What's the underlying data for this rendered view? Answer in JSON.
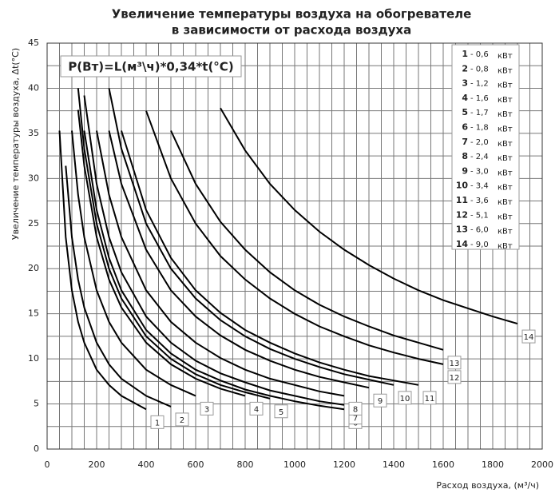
{
  "chart_data": {
    "type": "line",
    "title": [
      "Увеличение температуры воздуха на обогревателе",
      "в зависимости от расхода воздуха"
    ],
    "annotation": "P(Вт)=L(м³\\ч)*0,34*t(°C)",
    "x_label": "Расход воздуха, (м³/ч)",
    "y_label": "Увеличение температуры воздуха, Δt(°C)",
    "legend_unit": "кВт",
    "x": [
      50,
      75,
      100,
      125,
      150,
      200,
      250,
      300,
      400,
      500,
      600,
      700,
      800,
      900,
      1000,
      1100,
      1200,
      1300,
      1400,
      1500,
      1600,
      1700,
      1800,
      1900
    ],
    "series": [
      {
        "name": "1",
        "legend_label": "- 0,6",
        "color": "#000",
        "values": [
          35.3,
          23.5,
          17.6,
          14.1,
          11.8,
          8.8,
          7.1,
          5.9,
          4.4,
          null,
          null,
          null,
          null,
          null,
          null,
          null,
          null,
          null,
          null,
          null,
          null,
          null,
          null,
          null
        ]
      },
      {
        "name": "2",
        "legend_label": "- 0,8",
        "color": "#000",
        "values": [
          null,
          31.4,
          23.5,
          18.8,
          15.7,
          11.8,
          9.4,
          7.8,
          5.9,
          4.7,
          null,
          null,
          null,
          null,
          null,
          null,
          null,
          null,
          null,
          null,
          null,
          null,
          null,
          null
        ]
      },
      {
        "name": "3",
        "legend_label": "- 1,2",
        "color": "#000",
        "values": [
          null,
          null,
          35.3,
          28.2,
          23.5,
          17.6,
          14.1,
          11.8,
          8.8,
          7.1,
          5.9,
          null,
          null,
          null,
          null,
          null,
          null,
          null,
          null,
          null,
          null,
          null,
          null,
          null
        ]
      },
      {
        "name": "4",
        "legend_label": "- 1,6",
        "color": "#000",
        "values": [
          null,
          null,
          null,
          37.6,
          31.4,
          23.5,
          18.8,
          15.7,
          11.8,
          9.4,
          7.8,
          6.7,
          5.9,
          null,
          null,
          null,
          null,
          null,
          null,
          null,
          null,
          null,
          null,
          null
        ]
      },
      {
        "name": "5",
        "legend_label": "- 1,7",
        "color": "#000",
        "values": [
          null,
          null,
          null,
          40.0,
          33.3,
          25.0,
          20.0,
          16.7,
          12.5,
          10.0,
          8.3,
          7.1,
          6.3,
          5.6,
          null,
          null,
          null,
          null,
          null,
          null,
          null,
          null,
          null,
          null
        ]
      },
      {
        "name": "6",
        "legend_label": "- 1,8",
        "color": "#000",
        "values": [
          null,
          null,
          null,
          null,
          35.3,
          26.5,
          21.2,
          17.6,
          13.2,
          10.6,
          8.8,
          7.6,
          6.6,
          5.9,
          5.3,
          4.8,
          4.4,
          null,
          null,
          null,
          null,
          null,
          null,
          null
        ]
      },
      {
        "name": "7",
        "legend_label": "- 2,0",
        "color": "#000",
        "values": [
          null,
          null,
          null,
          null,
          39.2,
          29.4,
          23.5,
          19.6,
          14.7,
          11.8,
          9.8,
          8.4,
          7.4,
          6.5,
          5.9,
          5.3,
          4.9,
          null,
          null,
          null,
          null,
          null,
          null,
          null
        ]
      },
      {
        "name": "8",
        "legend_label": "- 2,4",
        "color": "#000",
        "values": [
          null,
          null,
          null,
          null,
          null,
          35.3,
          28.2,
          23.5,
          17.6,
          14.1,
          11.8,
          10.1,
          8.8,
          7.8,
          7.1,
          6.4,
          5.9,
          null,
          null,
          null,
          null,
          null,
          null,
          null
        ]
      },
      {
        "name": "9",
        "legend_label": "- 3,0",
        "color": "#000",
        "values": [
          null,
          null,
          null,
          null,
          null,
          null,
          35.3,
          29.4,
          22.1,
          17.6,
          14.7,
          12.6,
          11.0,
          9.8,
          8.8,
          8.0,
          7.4,
          6.8,
          null,
          null,
          null,
          null,
          null,
          null
        ]
      },
      {
        "name": "10",
        "legend_label": "- 3,4",
        "color": "#000",
        "values": [
          null,
          null,
          null,
          null,
          null,
          null,
          40.0,
          33.3,
          25.0,
          20.0,
          16.7,
          14.3,
          12.5,
          11.1,
          10.0,
          9.1,
          8.3,
          7.7,
          7.1,
          null,
          null,
          null,
          null,
          null
        ]
      },
      {
        "name": "11",
        "legend_label": "- 3,6",
        "color": "#000",
        "values": [
          null,
          null,
          null,
          null,
          null,
          null,
          null,
          35.3,
          26.5,
          21.2,
          17.6,
          15.1,
          13.2,
          11.8,
          10.6,
          9.6,
          8.8,
          8.1,
          7.6,
          7.1,
          null,
          null,
          null,
          null
        ]
      },
      {
        "name": "12",
        "legend_label": "- 5,1",
        "color": "#000",
        "values": [
          null,
          null,
          null,
          null,
          null,
          null,
          null,
          null,
          37.5,
          30.0,
          25.0,
          21.4,
          18.8,
          16.7,
          15.0,
          13.6,
          12.5,
          11.5,
          10.7,
          10.0,
          9.4,
          null,
          null,
          null
        ]
      },
      {
        "name": "13",
        "legend_label": "- 6,0",
        "color": "#000",
        "values": [
          null,
          null,
          null,
          null,
          null,
          null,
          null,
          null,
          null,
          35.3,
          29.4,
          25.2,
          22.1,
          19.6,
          17.6,
          16.0,
          14.7,
          13.6,
          12.6,
          11.8,
          11.0,
          null,
          null,
          null
        ]
      },
      {
        "name": "14",
        "legend_label": "- 9,0",
        "color": "#000",
        "values": [
          null,
          null,
          null,
          null,
          null,
          null,
          null,
          null,
          null,
          null,
          null,
          37.8,
          33.1,
          29.4,
          26.5,
          24.1,
          22.1,
          20.4,
          18.9,
          17.6,
          16.5,
          15.6,
          14.7,
          13.9
        ]
      }
    ],
    "xlim": [
      0,
      2000
    ],
    "xticks": [
      0,
      200,
      400,
      600,
      800,
      1000,
      1200,
      1400,
      1600,
      1800,
      2000
    ],
    "ylim": [
      0,
      45
    ],
    "yticks": [
      0,
      5,
      10,
      15,
      20,
      25,
      30,
      35,
      40,
      45
    ],
    "grid": true
  }
}
